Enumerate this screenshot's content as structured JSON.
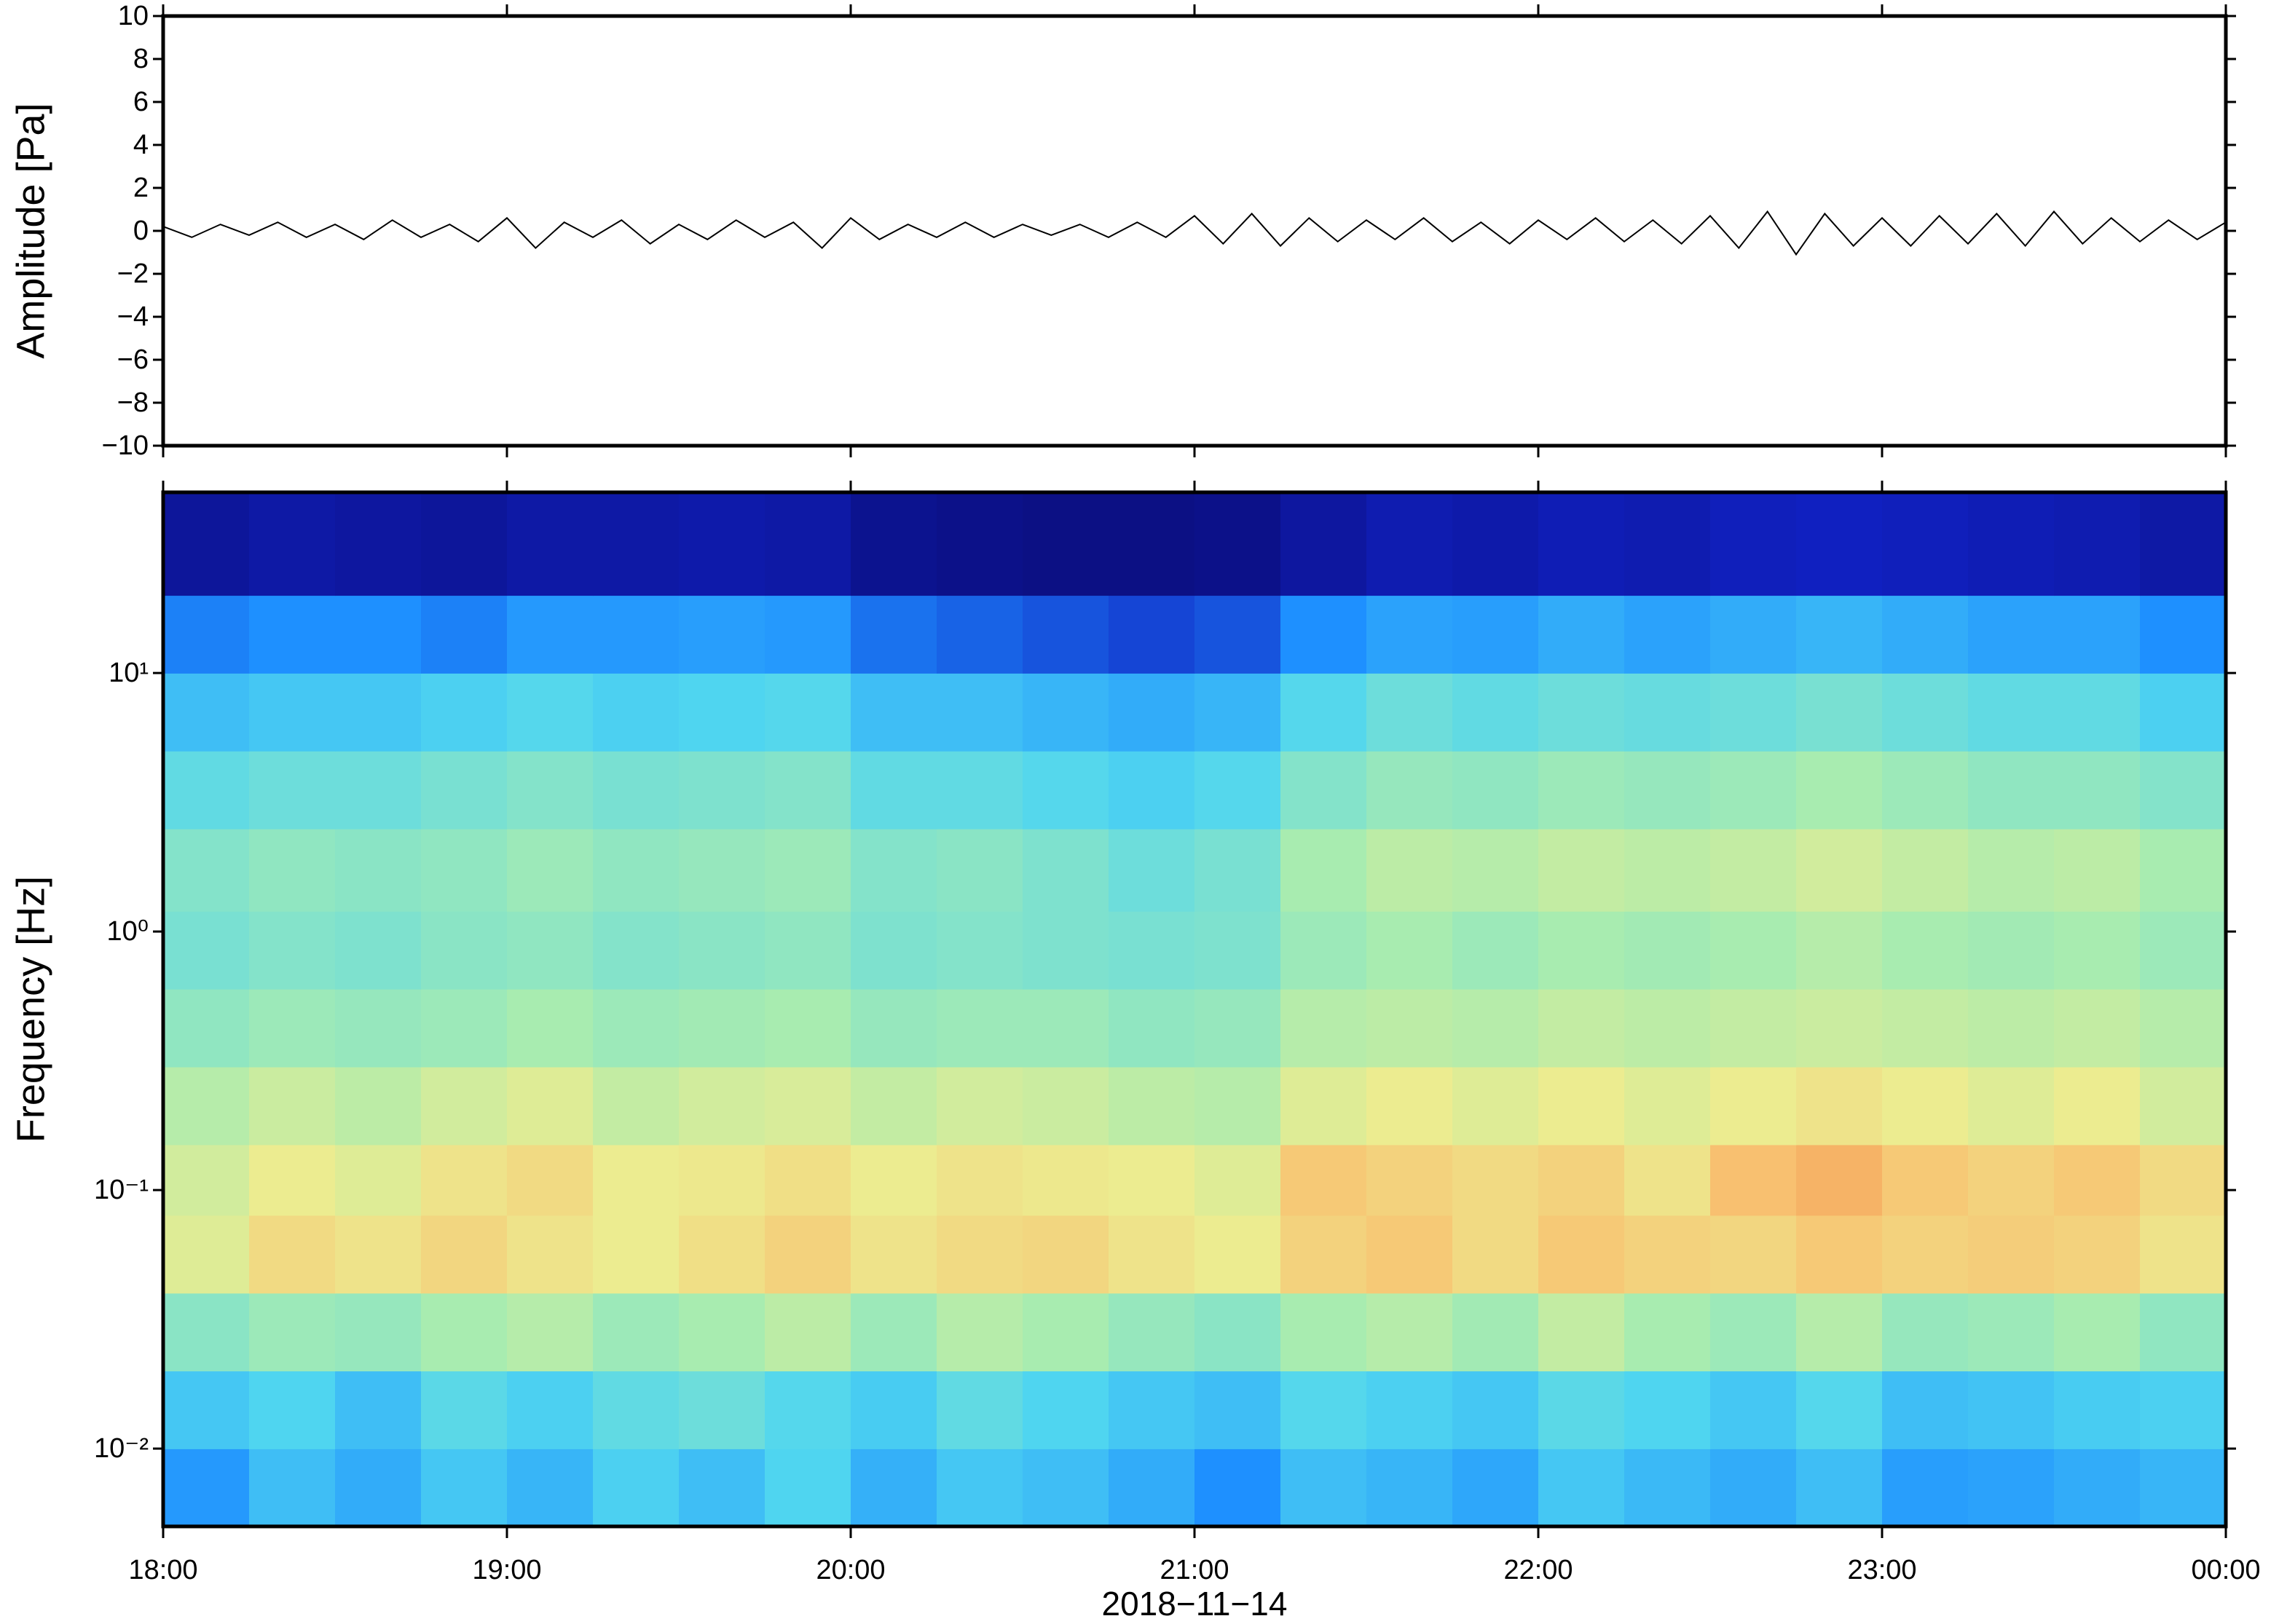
{
  "chart_data": [
    {
      "type": "line",
      "ylabel": "Amplitude [Pa]",
      "x": [
        0,
        5,
        10,
        15,
        20,
        25,
        30,
        35,
        40,
        45,
        50,
        55,
        60,
        65,
        70,
        75,
        80,
        85,
        90,
        95,
        100,
        105,
        110,
        115,
        120,
        125,
        130,
        135,
        140,
        145,
        150,
        155,
        160,
        165,
        170,
        175,
        180,
        185,
        190,
        195,
        200,
        205,
        210,
        215,
        220,
        225,
        230,
        235,
        240,
        245,
        250,
        255,
        260,
        265,
        270,
        275,
        280,
        285,
        290,
        295,
        300,
        305,
        310,
        315,
        320,
        325,
        330,
        335,
        340,
        345,
        350,
        355,
        360
      ],
      "xlim": [
        0,
        360
      ],
      "xticks": [
        {
          "value": 0,
          "label": "18:00"
        },
        {
          "value": 60,
          "label": "19:00"
        },
        {
          "value": 120,
          "label": "20:00"
        },
        {
          "value": 180,
          "label": "21:00"
        },
        {
          "value": 240,
          "label": "22:00"
        },
        {
          "value": 300,
          "label": "23:00"
        },
        {
          "value": 360,
          "label": "00:00"
        }
      ],
      "ylim": [
        -10,
        10
      ],
      "yticks": [
        10,
        8,
        6,
        4,
        2,
        0,
        {
          "value": -2,
          "label": "−2"
        },
        {
          "value": -4,
          "label": "−4"
        },
        {
          "value": -6,
          "label": "−6"
        },
        {
          "value": -8,
          "label": "−8"
        },
        {
          "value": -10,
          "label": "−10"
        }
      ],
      "series": [
        {
          "color": "#000000",
          "values": [
            0.2,
            -0.3,
            0.3,
            -0.2,
            0.4,
            -0.3,
            0.3,
            -0.4,
            0.5,
            -0.3,
            0.3,
            -0.5,
            0.6,
            -0.8,
            0.4,
            -0.3,
            0.5,
            -0.6,
            0.3,
            -0.4,
            0.5,
            -0.3,
            0.4,
            -0.8,
            0.6,
            -0.4,
            0.3,
            -0.3,
            0.4,
            -0.3,
            0.3,
            -0.2,
            0.3,
            -0.3,
            0.4,
            -0.3,
            0.7,
            -0.6,
            0.8,
            -0.7,
            0.6,
            -0.5,
            0.5,
            -0.4,
            0.6,
            -0.5,
            0.4,
            -0.6,
            0.5,
            -0.4,
            0.6,
            -0.5,
            0.5,
            -0.6,
            0.7,
            -0.8,
            0.9,
            -1.1,
            0.8,
            -0.7,
            0.6,
            -0.7,
            0.7,
            -0.6,
            0.8,
            -0.7,
            0.9,
            -0.6,
            0.6,
            -0.5,
            0.5,
            -0.4,
            0.4
          ]
        }
      ]
    },
    {
      "type": "heatmap",
      "ylabel": "Frequency [Hz]",
      "xlabel": "2018−11−14",
      "xlim": [
        0,
        360
      ],
      "xticks": [
        {
          "value": 0,
          "label": "18:00"
        },
        {
          "value": 60,
          "label": "19:00"
        },
        {
          "value": 120,
          "label": "20:00"
        },
        {
          "value": 180,
          "label": "21:00"
        },
        {
          "value": 240,
          "label": "22:00"
        },
        {
          "value": 300,
          "label": "23:00"
        },
        {
          "value": 360,
          "label": "00:00"
        }
      ],
      "ylim": [
        0.005,
        50
      ],
      "log_y": true,
      "yticks": [
        {
          "value": 0.01,
          "label": "10⁻²"
        },
        {
          "value": 0.1,
          "label": "10⁻¹"
        },
        {
          "value": 1,
          "label": "10⁰"
        },
        {
          "value": 10,
          "label": "10¹"
        }
      ],
      "x_edges": [
        0,
        15,
        30,
        45,
        60,
        75,
        90,
        105,
        120,
        135,
        150,
        165,
        180,
        195,
        210,
        225,
        240,
        255,
        270,
        285,
        300,
        315,
        330,
        345,
        360
      ],
      "y_edges": [
        0.005,
        0.01,
        0.02,
        0.04,
        0.08,
        0.15,
        0.3,
        0.6,
        1.2,
        2.5,
        5,
        10,
        20,
        50
      ],
      "z": [
        [
          0.32,
          0.4,
          0.36,
          0.42,
          0.38,
          0.44,
          0.4,
          0.45,
          0.37,
          0.42,
          0.4,
          0.36,
          0.3,
          0.4,
          0.38,
          0.35,
          0.42,
          0.39,
          0.36,
          0.4,
          0.33,
          0.34,
          0.36,
          0.38
        ],
        [
          0.42,
          0.45,
          0.4,
          0.47,
          0.44,
          0.48,
          0.5,
          0.46,
          0.43,
          0.48,
          0.45,
          0.42,
          0.4,
          0.46,
          0.44,
          0.42,
          0.47,
          0.45,
          0.42,
          0.46,
          0.4,
          0.41,
          0.43,
          0.44
        ],
        [
          0.55,
          0.58,
          0.57,
          0.6,
          0.62,
          0.58,
          0.6,
          0.63,
          0.58,
          0.62,
          0.6,
          0.57,
          0.55,
          0.6,
          0.62,
          0.59,
          0.64,
          0.6,
          0.58,
          0.62,
          0.57,
          0.58,
          0.6,
          0.56
        ],
        [
          0.68,
          0.74,
          0.72,
          0.75,
          0.72,
          0.7,
          0.73,
          0.76,
          0.72,
          0.74,
          0.75,
          0.72,
          0.7,
          0.76,
          0.78,
          0.74,
          0.78,
          0.76,
          0.75,
          0.78,
          0.76,
          0.77,
          0.76,
          0.72
        ],
        [
          0.66,
          0.7,
          0.68,
          0.72,
          0.74,
          0.7,
          0.71,
          0.73,
          0.7,
          0.72,
          0.71,
          0.7,
          0.68,
          0.78,
          0.76,
          0.74,
          0.76,
          0.72,
          0.8,
          0.82,
          0.78,
          0.76,
          0.78,
          0.74
        ],
        [
          0.62,
          0.65,
          0.63,
          0.66,
          0.68,
          0.64,
          0.66,
          0.67,
          0.64,
          0.66,
          0.65,
          0.63,
          0.62,
          0.68,
          0.7,
          0.68,
          0.7,
          0.68,
          0.7,
          0.72,
          0.7,
          0.68,
          0.7,
          0.66
        ],
        [
          0.56,
          0.58,
          0.57,
          0.58,
          0.6,
          0.58,
          0.59,
          0.6,
          0.57,
          0.58,
          0.58,
          0.56,
          0.57,
          0.62,
          0.63,
          0.62,
          0.64,
          0.63,
          0.64,
          0.65,
          0.64,
          0.63,
          0.64,
          0.62
        ],
        [
          0.52,
          0.54,
          0.53,
          0.55,
          0.56,
          0.54,
          0.55,
          0.56,
          0.53,
          0.54,
          0.53,
          0.52,
          0.53,
          0.58,
          0.6,
          0.58,
          0.6,
          0.59,
          0.6,
          0.62,
          0.6,
          0.59,
          0.6,
          0.58
        ],
        [
          0.54,
          0.56,
          0.55,
          0.56,
          0.58,
          0.56,
          0.57,
          0.58,
          0.54,
          0.55,
          0.53,
          0.5,
          0.52,
          0.6,
          0.63,
          0.62,
          0.64,
          0.63,
          0.64,
          0.66,
          0.64,
          0.62,
          0.63,
          0.6
        ],
        [
          0.48,
          0.5,
          0.5,
          0.52,
          0.54,
          0.52,
          0.53,
          0.54,
          0.48,
          0.48,
          0.46,
          0.44,
          0.46,
          0.54,
          0.57,
          0.56,
          0.58,
          0.57,
          0.58,
          0.6,
          0.58,
          0.56,
          0.56,
          0.54
        ],
        [
          0.4,
          0.42,
          0.42,
          0.44,
          0.46,
          0.44,
          0.45,
          0.46,
          0.4,
          0.4,
          0.38,
          0.36,
          0.38,
          0.46,
          0.5,
          0.48,
          0.5,
          0.49,
          0.5,
          0.52,
          0.5,
          0.48,
          0.48,
          0.44
        ],
        [
          0.28,
          0.3,
          0.3,
          0.28,
          0.32,
          0.32,
          0.33,
          0.32,
          0.26,
          0.24,
          0.22,
          0.2,
          0.22,
          0.3,
          0.34,
          0.33,
          0.36,
          0.34,
          0.36,
          0.38,
          0.36,
          0.34,
          0.34,
          0.3
        ],
        [
          0.08,
          0.1,
          0.09,
          0.08,
          0.1,
          0.1,
          0.11,
          0.1,
          0.06,
          0.05,
          0.04,
          0.04,
          0.05,
          0.09,
          0.12,
          0.11,
          0.13,
          0.12,
          0.14,
          0.15,
          0.14,
          0.13,
          0.12,
          0.1
        ]
      ]
    }
  ]
}
